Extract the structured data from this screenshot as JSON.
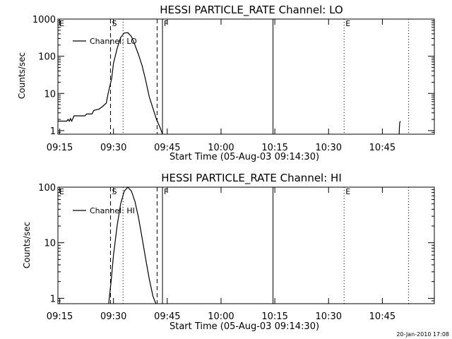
{
  "chart_data": [
    {
      "type": "line",
      "title": "HESSI PARTICLE_RATE Channel: LO",
      "xlabel": "Start Time (05-Aug-03 09:14:30)",
      "ylabel": "Counts/sec",
      "yscale": "log",
      "xlim": [
        "09:14:30",
        "10:59:30"
      ],
      "ylim": [
        0.8,
        1000
      ],
      "x_ticks": [
        "09:15",
        "09:30",
        "09:45",
        "10:00",
        "10:15",
        "10:30",
        "10:45"
      ],
      "y_ticks": [
        {
          "value": 1,
          "label": "1"
        },
        {
          "value": 10,
          "label": "10"
        },
        {
          "value": 100,
          "label": "100"
        },
        {
          "value": 1000,
          "label": "1000"
        }
      ],
      "legend": {
        "label": "Channel: LO",
        "placement": "top-left"
      },
      "grid": false,
      "series": [
        {
          "name": "Channel: LO",
          "segments": [
            [
              [
                "09:14:30",
                1.8
              ],
              [
                "09:17:00",
                1.8
              ],
              [
                "09:17:20",
                2.0
              ],
              [
                "09:17:40",
                1.8
              ],
              [
                "09:18:00",
                2.1
              ],
              [
                "09:18:20",
                1.8
              ],
              [
                "09:18:40",
                2.1
              ],
              [
                "09:19:00",
                2.5
              ],
              [
                "09:22:00",
                2.5
              ],
              [
                "09:22:30",
                2.8
              ],
              [
                "09:24:00",
                2.8
              ],
              [
                "09:24:30",
                3.5
              ],
              [
                "09:26:00",
                3.8
              ],
              [
                "09:27:00",
                4.5
              ],
              [
                "09:28:00",
                5.5
              ],
              [
                "09:28:30",
                10
              ],
              [
                "09:29:30",
                25
              ],
              [
                "09:30:00",
                65
              ],
              [
                "09:31:00",
                160
              ],
              [
                "09:32:00",
                320
              ],
              [
                "09:33:00",
                420
              ],
              [
                "09:34:00",
                430
              ],
              [
                "09:35:00",
                340
              ],
              [
                "09:36:00",
                200
              ],
              [
                "09:37:00",
                110
              ],
              [
                "09:38:00",
                55
              ],
              [
                "09:39:00",
                22
              ],
              [
                "09:40:00",
                8
              ],
              [
                "09:41:00",
                4
              ],
              [
                "09:42:00",
                2
              ],
              [
                "09:43:00",
                1.2
              ],
              [
                "09:43:40",
                0.8
              ]
            ],
            [
              [
                "10:49:40",
                0.8
              ],
              [
                "10:49:50",
                1.6
              ],
              [
                "10:50:00",
                1.8
              ]
            ]
          ]
        }
      ],
      "markers": [
        {
          "label": "E",
          "time": "09:14:30",
          "style": "none"
        },
        {
          "label": "S",
          "time": "09:29:10",
          "style": "dashed"
        },
        {
          "label": "",
          "time": "09:32:40",
          "style": "dotted"
        },
        {
          "label": "",
          "time": "09:42:10",
          "style": "dashed"
        },
        {
          "label": "F",
          "time": "09:43:40",
          "style": "solid"
        },
        {
          "label": "",
          "time": "10:14:30",
          "style": "solid"
        },
        {
          "label": "E",
          "time": "10:34:20",
          "style": "dotted"
        },
        {
          "label": "",
          "time": "10:52:20",
          "style": "dotted"
        }
      ]
    },
    {
      "type": "line",
      "title": "HESSI PARTICLE_RATE Channel: HI",
      "xlabel": "Start Time (05-Aug-03 09:14:30)",
      "ylabel": "Counts/sec",
      "yscale": "log",
      "xlim": [
        "09:14:30",
        "10:59:30"
      ],
      "ylim": [
        0.8,
        100
      ],
      "x_ticks": [
        "09:15",
        "09:30",
        "09:45",
        "10:00",
        "10:15",
        "10:30",
        "10:45"
      ],
      "y_ticks": [
        {
          "value": 1,
          "label": "1"
        },
        {
          "value": 10,
          "label": "10"
        },
        {
          "value": 100,
          "label": "100"
        }
      ],
      "legend": {
        "label": "Channel: HI",
        "placement": "top-left"
      },
      "grid": false,
      "series": [
        {
          "name": "Channel: HI",
          "segments": [
            [
              [
                "09:28:40",
                0.8
              ],
              [
                "09:29:20",
                2
              ],
              [
                "09:30:00",
                6
              ],
              [
                "09:31:00",
                20
              ],
              [
                "09:32:00",
                50
              ],
              [
                "09:33:00",
                85
              ],
              [
                "09:34:00",
                100
              ],
              [
                "09:35:00",
                85
              ],
              [
                "09:36:00",
                55
              ],
              [
                "09:37:00",
                28
              ],
              [
                "09:38:00",
                12
              ],
              [
                "09:39:00",
                5
              ],
              [
                "09:40:00",
                2.2
              ],
              [
                "09:41:00",
                1.1
              ],
              [
                "09:41:50",
                0.8
              ]
            ]
          ]
        }
      ],
      "markers": [
        {
          "label": "E",
          "time": "09:14:30",
          "style": "none"
        },
        {
          "label": "S",
          "time": "09:29:10",
          "style": "dashed"
        },
        {
          "label": "",
          "time": "09:32:40",
          "style": "dotted"
        },
        {
          "label": "",
          "time": "09:42:10",
          "style": "dashed"
        },
        {
          "label": "F",
          "time": "09:43:40",
          "style": "solid"
        },
        {
          "label": "",
          "time": "10:14:30",
          "style": "solid"
        },
        {
          "label": "E",
          "time": "10:34:20",
          "style": "dotted"
        },
        {
          "label": "",
          "time": "10:52:20",
          "style": "dotted"
        }
      ]
    }
  ],
  "footer": {
    "date_stamp": "20-Jan-2010 17:08"
  },
  "colors": {
    "foreground": "#000000",
    "background": "#ffffff"
  }
}
